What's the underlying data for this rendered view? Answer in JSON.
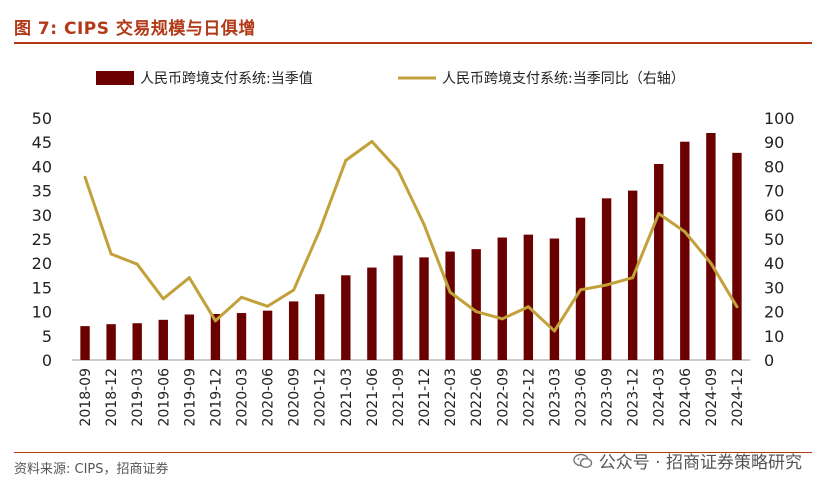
{
  "title": "图 7:  CIPS 交易规模与日俱增",
  "source": "资料来源:  CIPS，招商证券",
  "watermark": "公众号 · 招商证券策略研究",
  "colors": {
    "bar": "#6b0000",
    "line": "#c2a13a",
    "accent": "#b23a18"
  },
  "chart_data": {
    "type": "bar",
    "categories": [
      "2018-09",
      "2018-12",
      "2019-03",
      "2019-06",
      "2019-09",
      "2019-12",
      "2020-03",
      "2020-06",
      "2020-09",
      "2020-12",
      "2021-03",
      "2021-06",
      "2021-09",
      "2021-12",
      "2022-03",
      "2022-06",
      "2022-09",
      "2022-12",
      "2023-03",
      "2023-06",
      "2023-09",
      "2023-12",
      "2024-03",
      "2024-06",
      "2024-09",
      "2024-12"
    ],
    "series": [
      {
        "name": "人民币跨境支付系统:当季值",
        "type": "bar",
        "axis": "left",
        "values": [
          7.0,
          7.4,
          7.6,
          8.3,
          9.4,
          9.5,
          9.7,
          10.2,
          12.1,
          13.6,
          17.5,
          19.1,
          21.6,
          21.2,
          22.4,
          22.9,
          25.3,
          25.9,
          25.1,
          29.4,
          33.4,
          35.0,
          40.5,
          45.1,
          46.9,
          42.8
        ]
      },
      {
        "name": "人民币跨境支付系统:当季同比（右轴）",
        "type": "line",
        "axis": "right",
        "values": [
          75.5,
          43.8,
          39.6,
          25.3,
          34.0,
          16.2,
          25.9,
          22.2,
          28.9,
          53.6,
          82.5,
          90.3,
          78.5,
          56.0,
          28.0,
          20.0,
          17.0,
          22.0,
          12.0,
          29.0,
          31.0,
          34.0,
          60.5,
          53.0,
          40.0,
          22.0
        ]
      }
    ],
    "y_left": {
      "ylim": [
        0,
        50
      ],
      "ticks": [
        0,
        5,
        10,
        15,
        20,
        25,
        30,
        35,
        40,
        45,
        50
      ]
    },
    "y_right": {
      "ylim": [
        0,
        100
      ],
      "ticks": [
        0,
        10,
        20,
        30,
        40,
        50,
        60,
        70,
        80,
        90,
        100
      ]
    },
    "legend_position": "top",
    "grid": false
  }
}
